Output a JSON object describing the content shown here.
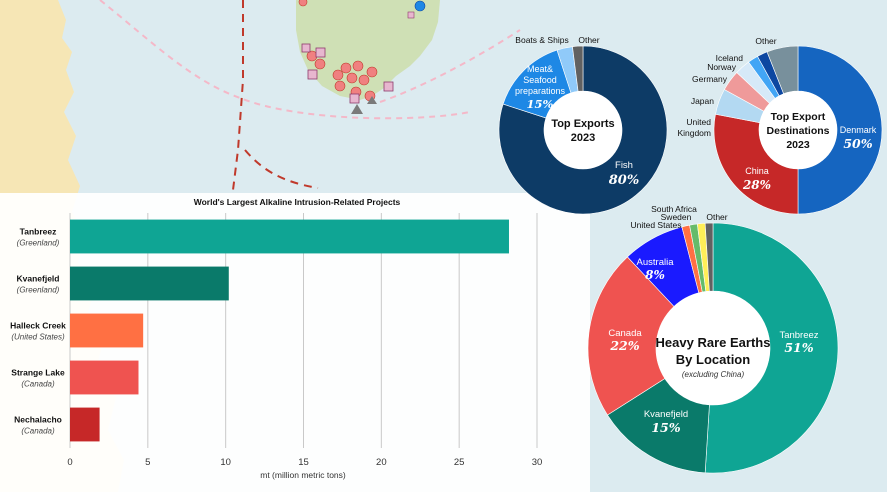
{
  "colors": {
    "ocean": "#dcebf0",
    "land": "#f6e6b5",
    "greenland_land": "#cfe0b5",
    "marker_red": "#f08080",
    "marker_pink": "#e7b6cf",
    "route_pink": "#f4b8c8",
    "border_red": "#c0392b"
  },
  "bar_chart": {
    "title": "World's Largest Alkaline Intrusion-Related Projects",
    "xlabel": "mt (million metric tons)",
    "projects": [
      {
        "name": "Tanbreez",
        "location": "(Greenland)",
        "color": "#0fa594"
      },
      {
        "name": "Kvanefjeld",
        "location": "(Greenland)",
        "color": "#0a7a6a"
      },
      {
        "name": "Halleck Creek",
        "location": "(United States)",
        "color": "#ff7043"
      },
      {
        "name": "Strange Lake",
        "location": "(Canada)",
        "color": "#ef5350"
      },
      {
        "name": "Nechalacho",
        "location": "(Canada)",
        "color": "#c62828"
      }
    ]
  },
  "donut_exports": {
    "title_line1": "Top Exports",
    "title_line2": "2023",
    "slices": [
      {
        "name": "Fish",
        "pct_label": "80%",
        "color": "#0d3b66"
      },
      {
        "name": "Meat& Seafood preparations",
        "name_lines": [
          "Meat&",
          "Seafood",
          "preparations"
        ],
        "pct_label": "15%",
        "color": "#1e88e5"
      },
      {
        "name": "Boats & Ships",
        "color": "#90caf9"
      },
      {
        "name": "Other",
        "color": "#616161"
      }
    ]
  },
  "donut_destinations": {
    "title_line1": "Top Export",
    "title_line2": "Destinations",
    "title_line3": "2023",
    "slices": [
      {
        "name": "Denmark",
        "pct_label": "50%",
        "color": "#1565c0"
      },
      {
        "name": "China",
        "pct_label": "28%",
        "color": "#c62828"
      },
      {
        "name": "United Kingdom",
        "name_lines": [
          "United",
          "Kingdom"
        ],
        "color": "#b3d9f2"
      },
      {
        "name": "Japan",
        "color": "#ef9a9a"
      },
      {
        "name": "Germany",
        "color": "#d6e9f8"
      },
      {
        "name": "Norway",
        "color": "#42a5f5"
      },
      {
        "name": "Iceland",
        "color": "#0d47a1"
      },
      {
        "name": "Other",
        "color": "#78909c"
      }
    ]
  },
  "donut_rare_earths": {
    "title_line1": "Heavy Rare Earths",
    "title_line2": "By Location",
    "subtitle": "(excluding China)",
    "slices": [
      {
        "name": "Tanbreez",
        "pct_label": "51%",
        "color": "#0fa594"
      },
      {
        "name": "Kvanefjeld",
        "pct_label": "15%",
        "color": "#0a7a6a"
      },
      {
        "name": "Canada",
        "pct_label": "22%",
        "color": "#ef5350"
      },
      {
        "name": "Australia",
        "pct_label": "8%",
        "color": "#1a1aff"
      },
      {
        "name": "United States",
        "color": "#ff7043"
      },
      {
        "name": "Sweden",
        "color": "#66bb6a"
      },
      {
        "name": "South Africa",
        "color": "#ffee58"
      },
      {
        "name": "Other",
        "color": "#616161"
      }
    ]
  },
  "chart_data": [
    {
      "type": "bar",
      "title": "World's Largest Alkaline Intrusion-Related Projects",
      "orientation": "horizontal",
      "categories": [
        "Tanbreez",
        "Kvanefjeld",
        "Halleck Creek",
        "Strange Lake",
        "Nechalacho"
      ],
      "values": [
        28.2,
        10.2,
        4.7,
        4.4,
        1.9
      ],
      "xlabel": "mt (million metric tons)",
      "xlim": [
        0,
        30
      ],
      "xticks": [
        0,
        5,
        10,
        15,
        20,
        25,
        30
      ],
      "grid": true
    },
    {
      "type": "pie",
      "title": "Top Exports 2023",
      "labels": [
        "Fish",
        "Meat& Seafood preparations",
        "Boats & Ships",
        "Other"
      ],
      "values": [
        80,
        15,
        3,
        2
      ]
    },
    {
      "type": "pie",
      "title": "Top Export Destinations 2023",
      "labels": [
        "Denmark",
        "China",
        "United Kingdom",
        "Japan",
        "Germany",
        "Norway",
        "Iceland",
        "Other"
      ],
      "values": [
        50,
        28,
        5,
        4,
        3,
        2,
        2,
        6
      ]
    },
    {
      "type": "pie",
      "title": "Heavy Rare Earths By Location",
      "subtitle": "(excluding China)",
      "labels": [
        "Tanbreez",
        "Kvanefjeld",
        "Canada",
        "Australia",
        "United States",
        "Sweden",
        "South Africa",
        "Other"
      ],
      "values": [
        51,
        15,
        22,
        8,
        1,
        1,
        1,
        1
      ]
    }
  ]
}
